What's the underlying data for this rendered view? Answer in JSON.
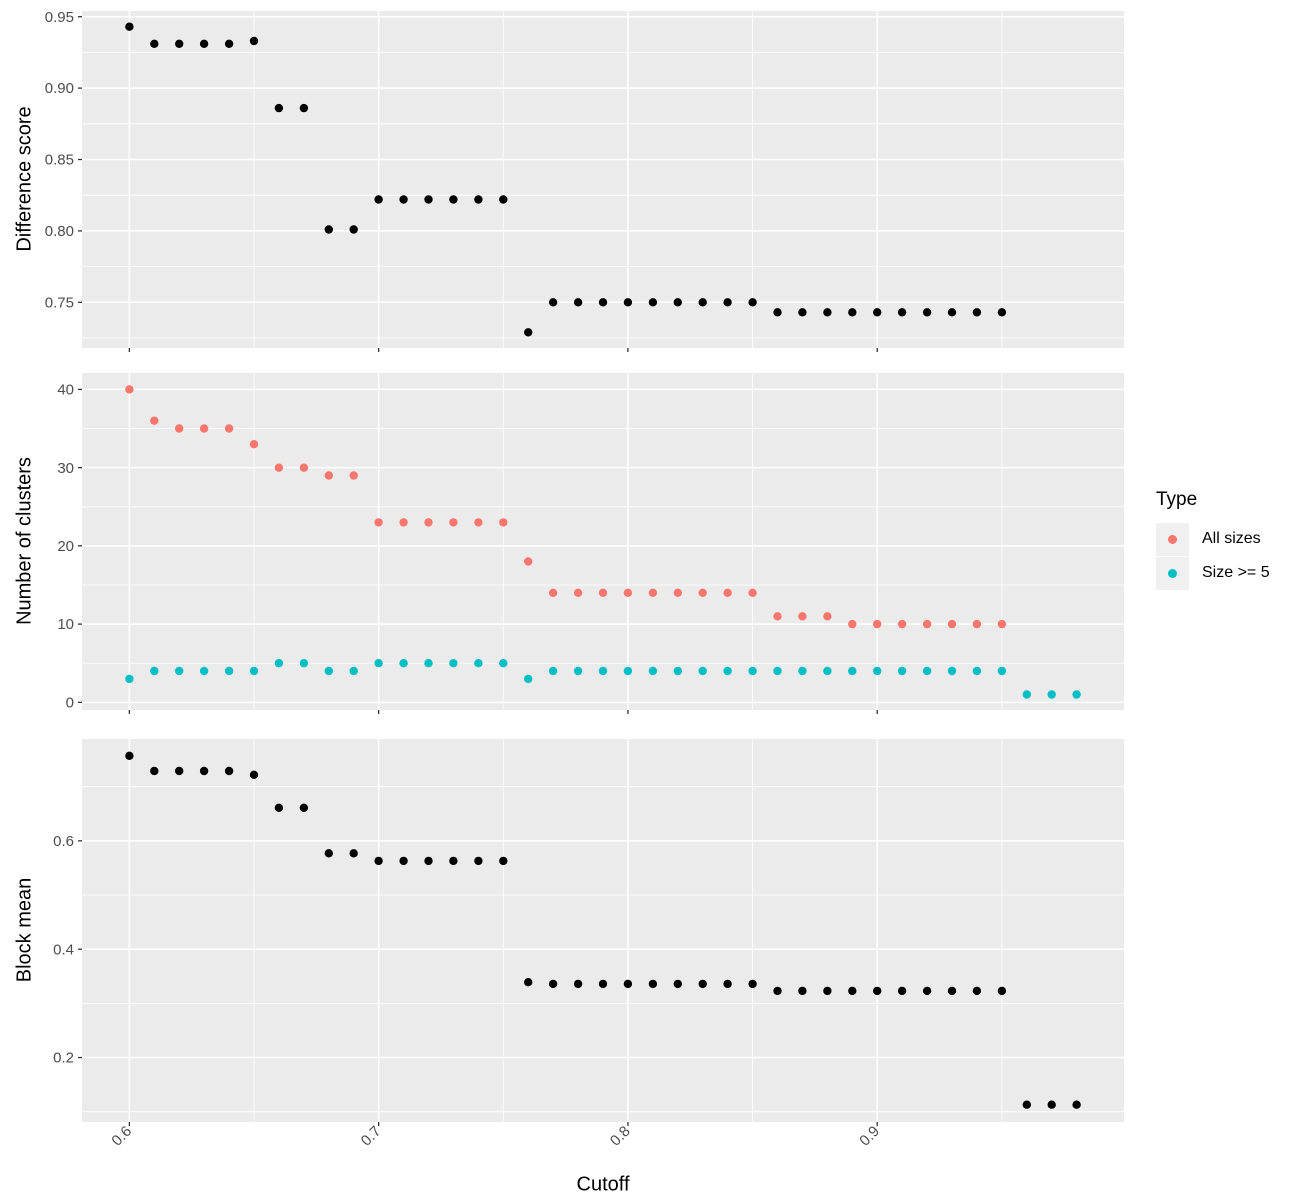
{
  "colors": {
    "panel_background": "#EBEBEB",
    "gridline": "#FFFFFF",
    "axis_text": "#4D4D4D",
    "tick_mark": "#333333",
    "black_series": "#000000",
    "all_sizes": "#F8766D",
    "size_ge_5": "#00BFC4"
  },
  "x_axis": {
    "title": "Cutoff",
    "range": [
      0.581,
      0.999
    ],
    "tick_values": [
      0.6,
      0.7,
      0.8,
      0.9
    ],
    "tick_labels": [
      "0.6",
      "0.7",
      "0.8",
      "0.9"
    ],
    "minor_values": [
      0.65,
      0.75,
      0.85,
      0.95
    ]
  },
  "legend": {
    "title": "Type",
    "items": [
      {
        "label": "All sizes",
        "color": "#F8766D"
      },
      {
        "label": "Size >= 5",
        "color": "#00BFC4"
      }
    ]
  },
  "chart_data": [
    {
      "type": "scatter",
      "ylabel": "Difference score",
      "ylim": [
        0.718,
        0.954
      ],
      "yticks": [
        0.75,
        0.8,
        0.85,
        0.9,
        0.95
      ],
      "ytick_labels": [
        "0.75",
        "0.80",
        "0.85",
        "0.90",
        "0.95"
      ],
      "yminor": [
        0.725,
        0.775,
        0.825,
        0.875,
        0.925
      ],
      "series": [
        {
          "name": "Difference score",
          "color": "#000000",
          "x": [
            0.6,
            0.61,
            0.62,
            0.63,
            0.64,
            0.65,
            0.66,
            0.67,
            0.68,
            0.69,
            0.7,
            0.71,
            0.72,
            0.73,
            0.74,
            0.75,
            0.76,
            0.77,
            0.78,
            0.79,
            0.8,
            0.81,
            0.82,
            0.83,
            0.84,
            0.85,
            0.86,
            0.87,
            0.88,
            0.89,
            0.9,
            0.91,
            0.92,
            0.93,
            0.94,
            0.95
          ],
          "y": [
            0.943,
            0.931,
            0.931,
            0.931,
            0.931,
            0.933,
            0.886,
            0.886,
            0.801,
            0.801,
            0.822,
            0.822,
            0.822,
            0.822,
            0.822,
            0.822,
            0.729,
            0.75,
            0.75,
            0.75,
            0.75,
            0.75,
            0.75,
            0.75,
            0.75,
            0.75,
            0.743,
            0.743,
            0.743,
            0.743,
            0.743,
            0.743,
            0.743,
            0.743,
            0.743,
            0.743
          ]
        }
      ]
    },
    {
      "type": "scatter",
      "ylabel": "Number of clusters",
      "ylim": [
        -0.98,
        42.1
      ],
      "yticks": [
        0,
        10,
        20,
        30,
        40
      ],
      "ytick_labels": [
        "0",
        "10",
        "20",
        "30",
        "40"
      ],
      "yminor": [
        5,
        15,
        25,
        35
      ],
      "series": [
        {
          "name": "All sizes",
          "color": "#F8766D",
          "x": [
            0.6,
            0.61,
            0.62,
            0.63,
            0.64,
            0.65,
            0.66,
            0.67,
            0.68,
            0.69,
            0.7,
            0.71,
            0.72,
            0.73,
            0.74,
            0.75,
            0.76,
            0.77,
            0.78,
            0.79,
            0.8,
            0.81,
            0.82,
            0.83,
            0.84,
            0.85,
            0.86,
            0.87,
            0.88,
            0.89,
            0.9,
            0.91,
            0.92,
            0.93,
            0.94,
            0.95
          ],
          "y": [
            40,
            36,
            35,
            35,
            35,
            33,
            30,
            30,
            29,
            29,
            23,
            23,
            23,
            23,
            23,
            23,
            18,
            14,
            14,
            14,
            14,
            14,
            14,
            14,
            14,
            14,
            11,
            11,
            11,
            10,
            10,
            10,
            10,
            10,
            10,
            10
          ]
        },
        {
          "name": "Size >= 5",
          "color": "#00BFC4",
          "x": [
            0.6,
            0.61,
            0.62,
            0.63,
            0.64,
            0.65,
            0.66,
            0.67,
            0.68,
            0.69,
            0.7,
            0.71,
            0.72,
            0.73,
            0.74,
            0.75,
            0.76,
            0.77,
            0.78,
            0.79,
            0.8,
            0.81,
            0.82,
            0.83,
            0.84,
            0.85,
            0.86,
            0.87,
            0.88,
            0.89,
            0.9,
            0.91,
            0.92,
            0.93,
            0.94,
            0.95,
            0.96,
            0.97,
            0.98
          ],
          "y": [
            3,
            4,
            4,
            4,
            4,
            4,
            5,
            5,
            4,
            4,
            5,
            5,
            5,
            5,
            5,
            5,
            3,
            4,
            4,
            4,
            4,
            4,
            4,
            4,
            4,
            4,
            4,
            4,
            4,
            4,
            4,
            4,
            4,
            4,
            4,
            4,
            1,
            1,
            1
          ]
        }
      ]
    },
    {
      "type": "scatter",
      "ylabel": "Block mean",
      "ylim": [
        0.081,
        0.788
      ],
      "yticks": [
        0.2,
        0.4,
        0.6
      ],
      "ytick_labels": [
        "0.2",
        "0.4",
        "0.6"
      ],
      "yminor": [
        0.1,
        0.3,
        0.5,
        0.7
      ],
      "series": [
        {
          "name": "Block mean",
          "color": "#000000",
          "x": [
            0.6,
            0.61,
            0.62,
            0.63,
            0.64,
            0.65,
            0.66,
            0.67,
            0.68,
            0.69,
            0.7,
            0.71,
            0.72,
            0.73,
            0.74,
            0.75,
            0.76,
            0.77,
            0.78,
            0.79,
            0.8,
            0.81,
            0.82,
            0.83,
            0.84,
            0.85,
            0.86,
            0.87,
            0.88,
            0.89,
            0.9,
            0.91,
            0.92,
            0.93,
            0.94,
            0.95,
            0.96,
            0.97,
            0.98
          ],
          "y": [
            0.757,
            0.729,
            0.729,
            0.729,
            0.729,
            0.722,
            0.661,
            0.661,
            0.577,
            0.577,
            0.563,
            0.563,
            0.563,
            0.563,
            0.563,
            0.563,
            0.339,
            0.336,
            0.336,
            0.336,
            0.336,
            0.336,
            0.336,
            0.336,
            0.336,
            0.336,
            0.323,
            0.323,
            0.323,
            0.323,
            0.323,
            0.323,
            0.323,
            0.323,
            0.323,
            0.323,
            0.113,
            0.113,
            0.113
          ]
        }
      ]
    }
  ]
}
